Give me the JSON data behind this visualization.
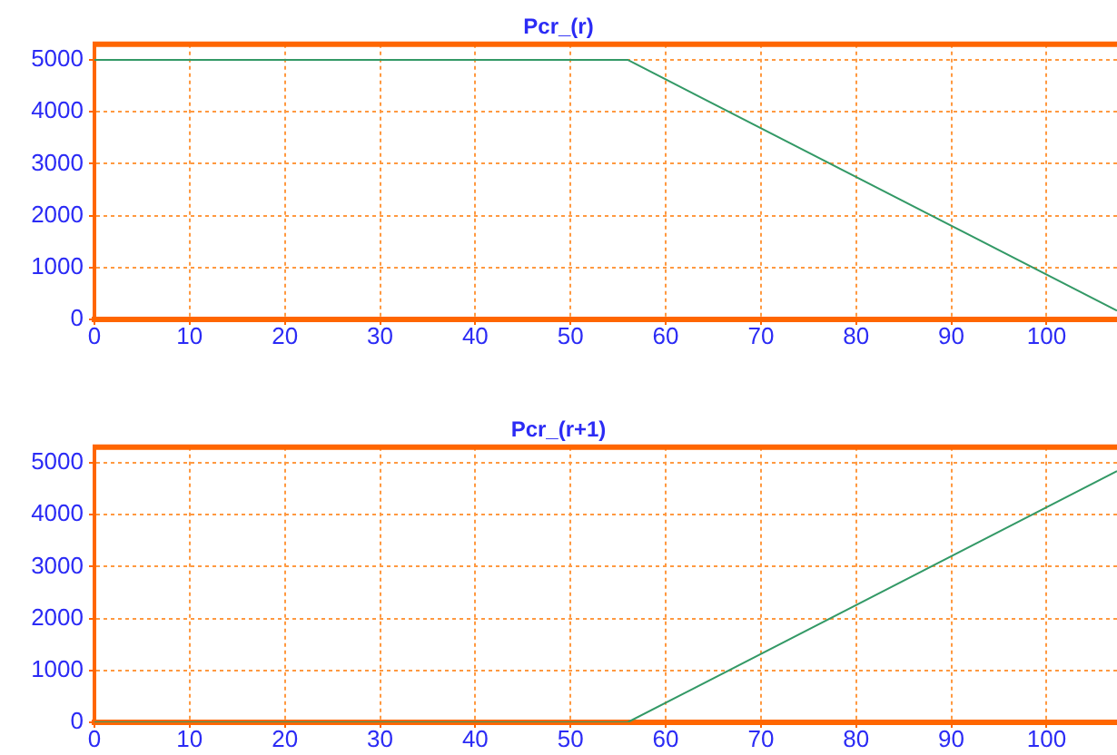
{
  "chart_data": [
    {
      "type": "line",
      "title": "Pcr_(r)",
      "x": [
        0,
        56,
        107.4
      ],
      "values": [
        5000,
        5000,
        170
      ],
      "color": "#339966",
      "xlim": [
        0,
        107.4
      ],
      "ylim": [
        0,
        5300
      ],
      "xticks": [
        0,
        10,
        20,
        30,
        40,
        50,
        60,
        70,
        80,
        90,
        100
      ],
      "yticks": [
        0,
        1000,
        2000,
        3000,
        4000,
        5000
      ],
      "grid": true,
      "marker": "none"
    },
    {
      "type": "line",
      "title": "Pcr_(r+1)",
      "x": [
        0,
        56,
        107.4
      ],
      "values": [
        0,
        0,
        4840
      ],
      "color": "#339966",
      "xlim": [
        0,
        107.4
      ],
      "ylim": [
        0,
        5300
      ],
      "xticks": [
        0,
        10,
        20,
        30,
        40,
        50,
        60,
        70,
        80,
        90,
        100
      ],
      "yticks": [
        0,
        1000,
        2000,
        3000,
        4000,
        5000
      ],
      "grid": true,
      "marker": "none"
    }
  ]
}
